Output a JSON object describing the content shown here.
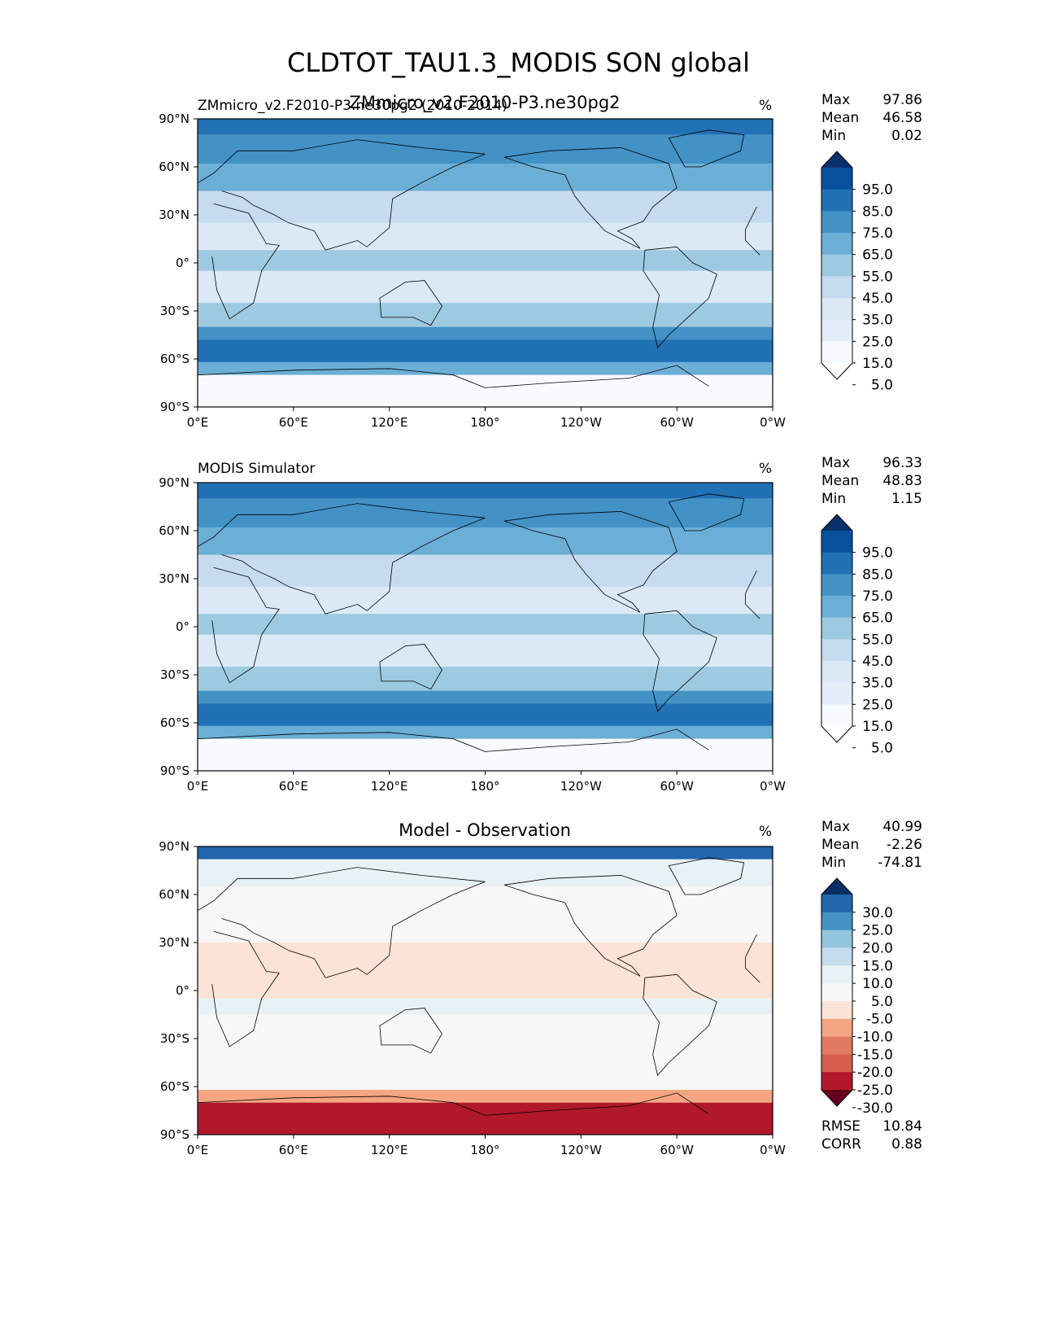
{
  "figure": {
    "title": "CLDTOT_TAU1.3_MODIS SON global"
  },
  "chart_data": [
    {
      "type": "heatmap",
      "id": "panel-model",
      "title_left": "ZMmicro_v2.F2010-P3.ne30pg2 (2010-2014)",
      "title_center": "ZMmicro_v2.F2010-P3.ne30pg2",
      "units": "%",
      "x_ticks": [
        "0°E",
        "60°E",
        "120°E",
        "180°",
        "120°W",
        "60°W",
        "0°W"
      ],
      "y_ticks": [
        "90°N",
        "60°N",
        "30°N",
        "0°",
        "30°S",
        "60°S",
        "90°S"
      ],
      "xlim": [
        0,
        360
      ],
      "ylim": [
        -90,
        90
      ],
      "stats": [
        {
          "label": "Max",
          "value": "97.86"
        },
        {
          "label": "Mean",
          "value": "46.58"
        },
        {
          "label": "Min",
          "value": "0.02"
        }
      ],
      "colorbar": {
        "labels": [
          "95.0",
          "85.0",
          "75.0",
          "65.0",
          "55.0",
          "45.0",
          "35.0",
          "25.0",
          "15.0",
          "5.0"
        ],
        "colors": [
          "#08306b",
          "#08519c",
          "#2171b5",
          "#4292c6",
          "#6baed6",
          "#9ecae1",
          "#c6dbef",
          "#dbe9f6",
          "#e3eef9",
          "#f7fbff",
          "#ffffff"
        ]
      }
    },
    {
      "type": "heatmap",
      "id": "panel-obs",
      "title_left": "MODIS Simulator",
      "units": "%",
      "x_ticks": [
        "0°E",
        "60°E",
        "120°E",
        "180°",
        "120°W",
        "60°W",
        "0°W"
      ],
      "y_ticks": [
        "90°N",
        "60°N",
        "30°N",
        "0°",
        "30°S",
        "60°S",
        "90°S"
      ],
      "xlim": [
        0,
        360
      ],
      "ylim": [
        -90,
        90
      ],
      "stats": [
        {
          "label": "Max",
          "value": "96.33"
        },
        {
          "label": "Mean",
          "value": "48.83"
        },
        {
          "label": "Min",
          "value": "1.15"
        }
      ],
      "colorbar": {
        "labels": [
          "95.0",
          "85.0",
          "75.0",
          "65.0",
          "55.0",
          "45.0",
          "35.0",
          "25.0",
          "15.0",
          "5.0"
        ],
        "colors": [
          "#08306b",
          "#08519c",
          "#2171b5",
          "#4292c6",
          "#6baed6",
          "#9ecae1",
          "#c6dbef",
          "#dbe9f6",
          "#e3eef9",
          "#f7fbff",
          "#ffffff"
        ]
      }
    },
    {
      "type": "heatmap",
      "id": "panel-diff",
      "title_center": "Model - Observation",
      "units": "%",
      "x_ticks": [
        "0°E",
        "60°E",
        "120°E",
        "180°",
        "120°W",
        "60°W",
        "0°W"
      ],
      "y_ticks": [
        "90°N",
        "60°N",
        "30°N",
        "0°",
        "30°S",
        "60°S",
        "90°S"
      ],
      "xlim": [
        0,
        360
      ],
      "ylim": [
        -90,
        90
      ],
      "stats": [
        {
          "label": "Max",
          "value": "40.99"
        },
        {
          "label": "Mean",
          "value": "-2.26"
        },
        {
          "label": "Min",
          "value": "-74.81"
        }
      ],
      "extra_stats": [
        {
          "label": "RMSE",
          "value": "10.84"
        },
        {
          "label": "CORR",
          "value": "0.88"
        }
      ],
      "colorbar": {
        "labels": [
          "30.0",
          "25.0",
          "20.0",
          "15.0",
          "10.0",
          "5.0",
          "-5.0",
          "-10.0",
          "-15.0",
          "-20.0",
          "-25.0",
          "-30.0"
        ],
        "colors": [
          "#053061",
          "#2166ac",
          "#4393c3",
          "#92c5de",
          "#c4dcec",
          "#e8f1f6",
          "#f7f7f7",
          "#fbe3d6",
          "#f4a582",
          "#e07b62",
          "#d6604d",
          "#b2182b",
          "#67001f"
        ]
      }
    }
  ]
}
